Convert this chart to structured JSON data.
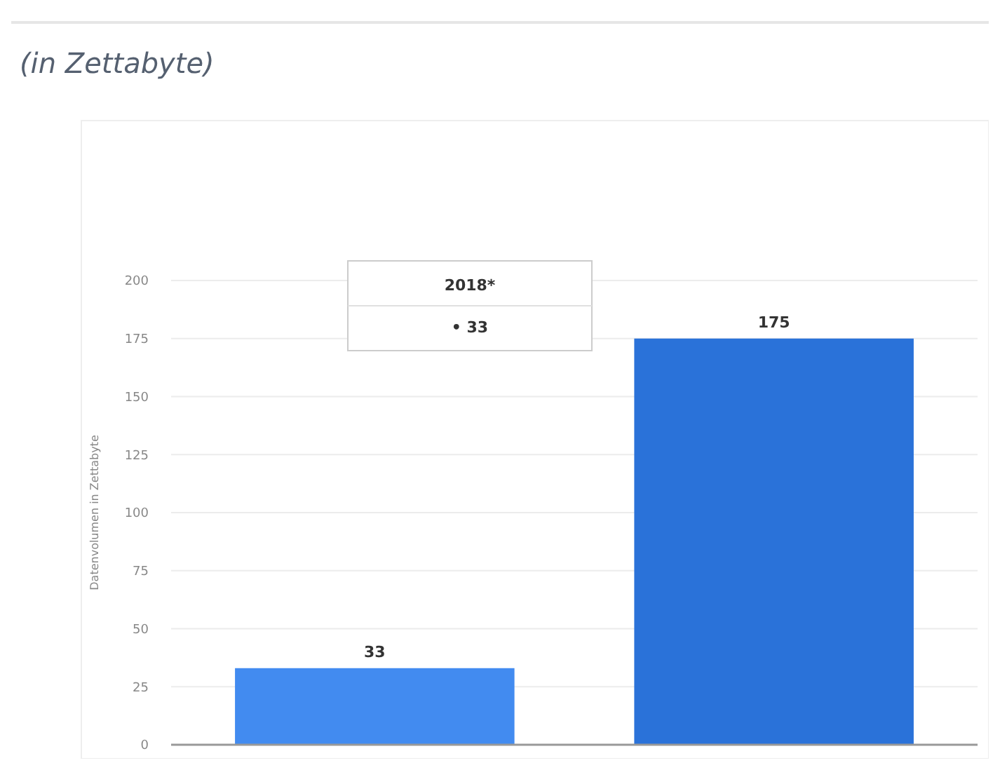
{
  "chart_data": {
    "type": "bar",
    "title": "(in Zettabyte)",
    "ylabel": "Datenvolumen in Zettabyte",
    "categories": [
      null,
      null
    ],
    "values": [
      33,
      175
    ],
    "colors": [
      "#428bf0",
      "#2a72d9"
    ],
    "ylim": [
      0,
      200
    ],
    "yticks": [
      0,
      25,
      50,
      75,
      100,
      125,
      150,
      175,
      200
    ],
    "grid": "y",
    "data_labels": true,
    "annotations": [
      "2018*",
      "• 33"
    ]
  }
}
